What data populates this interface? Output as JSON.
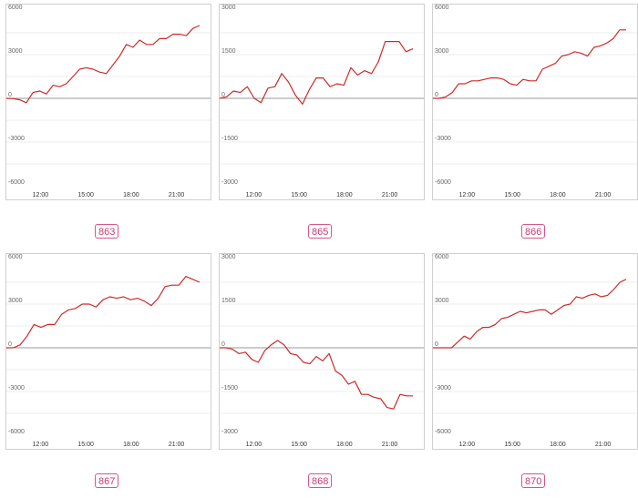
{
  "chart_data": [
    {
      "type": "line",
      "label": "863",
      "ylim": [
        -6000,
        6000
      ],
      "y_ticks": [
        6000,
        3000,
        0,
        -3000,
        -6000
      ],
      "x_ticks": [
        "12:00",
        "15:00",
        "18:00",
        "21:00"
      ],
      "color": "#cc2a2a",
      "grid": true,
      "values": [
        0,
        -20,
        -100,
        -300,
        400,
        500,
        300,
        900,
        800,
        1000,
        1500,
        2000,
        2100,
        2000,
        1800,
        1700,
        2300,
        2900,
        3700,
        3500,
        4000,
        3700,
        3700,
        4100,
        4100,
        4400,
        4400,
        4300,
        4800,
        5000
      ]
    },
    {
      "type": "line",
      "label": "865",
      "ylim": [
        -3000,
        3000
      ],
      "y_ticks": [
        3000,
        1500,
        0,
        -1500,
        -3000
      ],
      "x_ticks": [
        "12:00",
        "15:00",
        "18:00",
        "21:00"
      ],
      "color": "#cc2a2a",
      "grid": true,
      "values": [
        0,
        50,
        250,
        200,
        400,
        0,
        -150,
        350,
        400,
        850,
        550,
        100,
        -200,
        300,
        700,
        700,
        400,
        500,
        450,
        1050,
        800,
        950,
        850,
        1250,
        1950,
        1950,
        1950,
        1600,
        1700
      ]
    },
    {
      "type": "line",
      "label": "866",
      "ylim": [
        -6000,
        6000
      ],
      "y_ticks": [
        6000,
        3000,
        0,
        -3000,
        -6000
      ],
      "x_ticks": [
        "12:00",
        "15:00",
        "18:00",
        "21:00"
      ],
      "color": "#cc2a2a",
      "grid": true,
      "values": [
        0,
        0,
        100,
        400,
        1000,
        1000,
        1200,
        1200,
        1300,
        1400,
        1400,
        1300,
        1000,
        900,
        1300,
        1200,
        1200,
        2000,
        2200,
        2400,
        2900,
        3000,
        3200,
        3100,
        2900,
        3500,
        3600,
        3800,
        4100,
        4700,
        4700
      ]
    },
    {
      "type": "line",
      "label": "867",
      "ylim": [
        -6000,
        6000
      ],
      "y_ticks": [
        6000,
        3000,
        0,
        -3000,
        -6000
      ],
      "x_ticks": [
        "12:00",
        "15:00",
        "18:00",
        "21:00"
      ],
      "color": "#cc2a2a",
      "grid": true,
      "values": [
        0,
        0,
        200,
        800,
        1600,
        1400,
        1600,
        1600,
        2300,
        2600,
        2700,
        3000,
        3000,
        2800,
        3300,
        3500,
        3400,
        3500,
        3300,
        3400,
        3200,
        2900,
        3400,
        4200,
        4300,
        4300,
        4900,
        4700,
        4500
      ]
    },
    {
      "type": "line",
      "label": "868",
      "ylim": [
        -3000,
        3000
      ],
      "y_ticks": [
        3000,
        1500,
        0,
        -1500,
        -3000
      ],
      "x_ticks": [
        "12:00",
        "15:00",
        "18:00",
        "21:00"
      ],
      "color": "#cc2a2a",
      "grid": true,
      "values": [
        0,
        0,
        -50,
        -200,
        -150,
        -400,
        -500,
        -100,
        100,
        250,
        100,
        -200,
        -250,
        -500,
        -550,
        -300,
        -450,
        -200,
        -800,
        -950,
        -1250,
        -1150,
        -1600,
        -1600,
        -1700,
        -1750,
        -2050,
        -2100,
        -1600,
        -1650,
        -1650
      ]
    },
    {
      "type": "line",
      "label": "870",
      "ylim": [
        -6000,
        6000
      ],
      "y_ticks": [
        6000,
        3000,
        0,
        -3000,
        -6000
      ],
      "x_ticks": [
        "12:00",
        "15:00",
        "18:00",
        "21:00"
      ],
      "color": "#cc2a2a",
      "grid": true,
      "values": [
        0,
        0,
        0,
        0,
        400,
        800,
        600,
        1100,
        1400,
        1400,
        1600,
        2000,
        2100,
        2300,
        2500,
        2400,
        2500,
        2600,
        2600,
        2300,
        2600,
        2900,
        3000,
        3500,
        3400,
        3600,
        3700,
        3500,
        3600,
        4000,
        4500,
        4700
      ]
    }
  ]
}
